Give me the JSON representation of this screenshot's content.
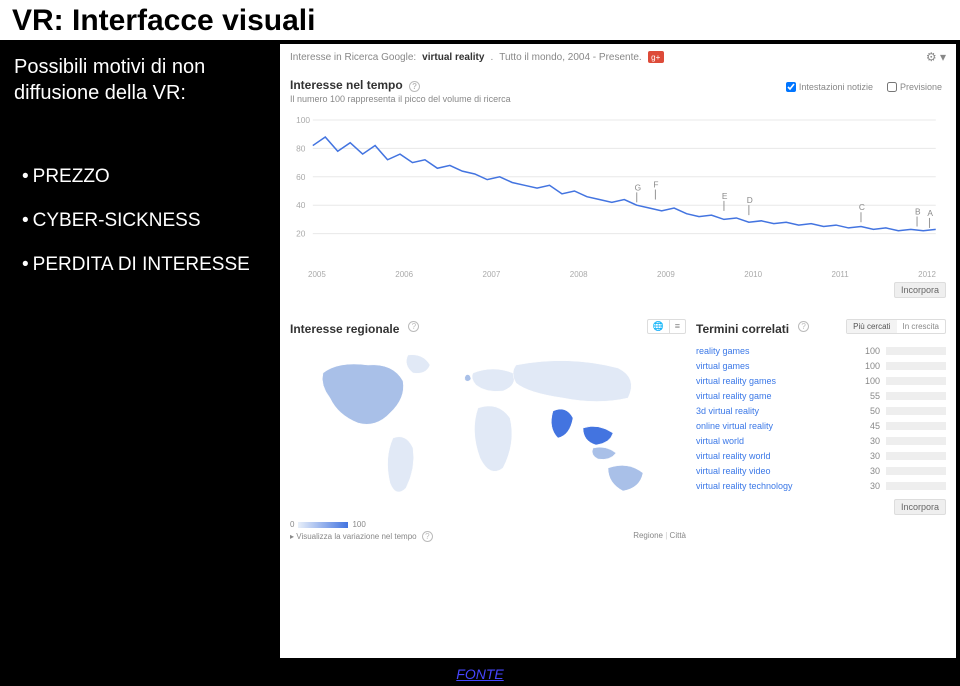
{
  "title": "VR: Interfacce visuali",
  "subtitle": "Possibili motivi di non diffusione della VR:",
  "bullets": [
    "PREZZO",
    "CYBER-SICKNESS",
    "PERDITA DI INTERESSE"
  ],
  "trends": {
    "header_prefix": "Interesse in Ricerca Google:",
    "search_term": "virtual reality",
    "scope": "Tutto il mondo, 2004 - Presente.",
    "interest_title": "Interesse nel tempo",
    "interest_subtitle": "Il numero 100 rappresenta il picco del volume di ricerca",
    "toggle_news": "Intestazioni notizie",
    "toggle_forecast": "Previsione",
    "chart": {
      "type": "line",
      "ylim": [
        0,
        100
      ],
      "yticks": [
        20,
        40,
        60,
        80,
        100
      ],
      "xlabels": [
        "2005",
        "2006",
        "2007",
        "2008",
        "2009",
        "2010",
        "2011",
        "2012"
      ],
      "line_color": "#4374e0",
      "grid_color": "#e8e8e8",
      "background_color": "#ffffff",
      "points": [
        [
          0,
          82
        ],
        [
          2,
          88
        ],
        [
          4,
          78
        ],
        [
          6,
          84
        ],
        [
          8,
          76
        ],
        [
          10,
          82
        ],
        [
          12,
          72
        ],
        [
          14,
          76
        ],
        [
          16,
          70
        ],
        [
          18,
          72
        ],
        [
          20,
          66
        ],
        [
          22,
          68
        ],
        [
          24,
          64
        ],
        [
          26,
          62
        ],
        [
          28,
          58
        ],
        [
          30,
          60
        ],
        [
          32,
          56
        ],
        [
          34,
          54
        ],
        [
          36,
          52
        ],
        [
          38,
          54
        ],
        [
          40,
          48
        ],
        [
          42,
          50
        ],
        [
          44,
          46
        ],
        [
          46,
          44
        ],
        [
          48,
          42
        ],
        [
          50,
          44
        ],
        [
          52,
          40
        ],
        [
          54,
          38
        ],
        [
          56,
          36
        ],
        [
          58,
          38
        ],
        [
          60,
          34
        ],
        [
          62,
          32
        ],
        [
          64,
          33
        ],
        [
          66,
          30
        ],
        [
          68,
          31
        ],
        [
          70,
          28
        ],
        [
          72,
          29
        ],
        [
          74,
          27
        ],
        [
          76,
          28
        ],
        [
          78,
          26
        ],
        [
          80,
          27
        ],
        [
          82,
          25
        ],
        [
          84,
          26
        ],
        [
          86,
          24
        ],
        [
          88,
          25
        ],
        [
          90,
          23
        ],
        [
          92,
          24
        ],
        [
          94,
          22
        ],
        [
          96,
          23
        ],
        [
          98,
          22
        ],
        [
          100,
          23
        ]
      ],
      "markers": [
        {
          "label": "G",
          "x": 52,
          "y": 42
        },
        {
          "label": "F",
          "x": 55,
          "y": 44
        },
        {
          "label": "E",
          "x": 66,
          "y": 36
        },
        {
          "label": "D",
          "x": 70,
          "y": 33
        },
        {
          "label": "C",
          "x": 88,
          "y": 28
        },
        {
          "label": "B",
          "x": 97,
          "y": 25
        },
        {
          "label": "A",
          "x": 99,
          "y": 24
        }
      ]
    },
    "embed_label": "Incorpora",
    "regional": {
      "title": "Interesse regionale",
      "legend_min": "0",
      "legend_max": "100",
      "footer_link": "Visualizza la variazione nel tempo",
      "tab_region": "Regione",
      "tab_city": "Città",
      "map_colors": {
        "ocean": "#ffffff",
        "land_light": "#e1e9f6",
        "land_medium": "#a9c0e8",
        "land_dark": "#4374e0"
      }
    },
    "related": {
      "title": "Termini correlati",
      "tab_top": "Più cercati",
      "tab_rising": "In crescita",
      "bar_color": "#4374e0",
      "items": [
        {
          "label": "reality games",
          "value": 100
        },
        {
          "label": "virtual games",
          "value": 100
        },
        {
          "label": "virtual reality games",
          "value": 100
        },
        {
          "label": "virtual reality game",
          "value": 55
        },
        {
          "label": "3d virtual reality",
          "value": 50
        },
        {
          "label": "online virtual reality",
          "value": 45
        },
        {
          "label": "virtual world",
          "value": 30
        },
        {
          "label": "virtual reality world",
          "value": 30
        },
        {
          "label": "virtual reality video",
          "value": 30
        },
        {
          "label": "virtual reality technology",
          "value": 30
        }
      ]
    }
  },
  "fonte_label": "FONTE"
}
